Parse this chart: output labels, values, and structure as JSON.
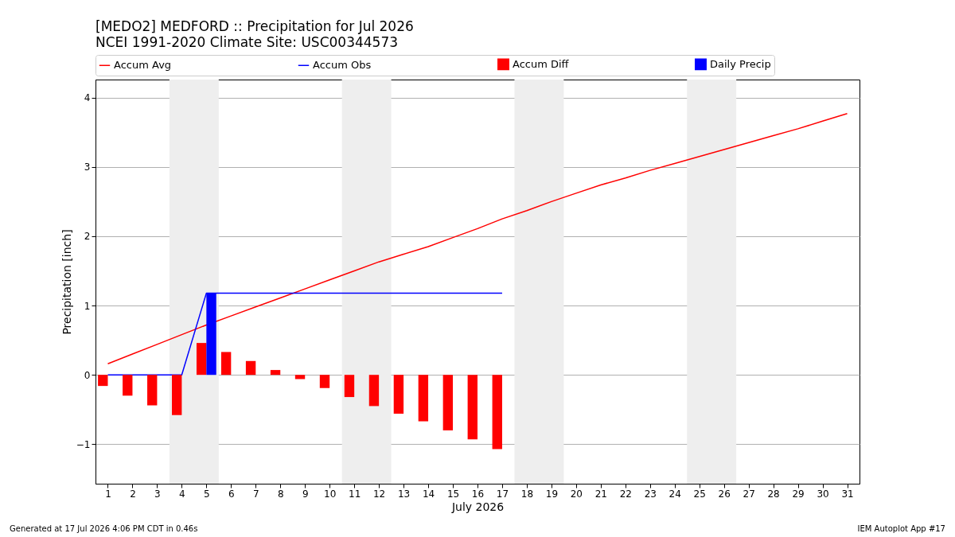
{
  "chart_data": {
    "type": "line",
    "title": "[MEDO2] MEDFORD :: Precipitation for Jul 2026",
    "subtitle": "NCEI 1991-2020 Climate Site: USC00344573",
    "xlabel": "July 2026",
    "ylabel": "Precipitation [inch]",
    "x": [
      1,
      2,
      3,
      4,
      5,
      6,
      7,
      8,
      9,
      10,
      11,
      12,
      13,
      14,
      15,
      16,
      17,
      18,
      19,
      20,
      21,
      22,
      23,
      24,
      25,
      26,
      27,
      28,
      29,
      30,
      31
    ],
    "series": [
      {
        "name": "Accum Avg",
        "color": "#ff0000",
        "values": [
          0.16,
          0.3,
          0.44,
          0.58,
          0.72,
          0.85,
          0.98,
          1.11,
          1.24,
          1.37,
          1.5,
          1.63,
          1.74,
          1.85,
          1.98,
          2.11,
          2.25,
          2.37,
          2.5,
          2.62,
          2.74,
          2.84,
          2.95,
          3.05,
          3.15,
          3.25,
          3.35,
          3.45,
          3.55,
          3.66,
          3.77
        ]
      },
      {
        "name": "Accum Obs",
        "color": "#0000ff",
        "values": [
          0,
          0,
          0,
          0,
          1.18,
          1.18,
          1.18,
          1.18,
          1.18,
          1.18,
          1.18,
          1.18,
          1.18,
          1.18,
          1.18,
          1.18,
          1.18,
          null,
          null,
          null,
          null,
          null,
          null,
          null,
          null,
          null,
          null,
          null,
          null,
          null,
          null
        ]
      },
      {
        "name": "Accum Diff",
        "type": "bar",
        "color": "#ff0000",
        "values": [
          -0.16,
          -0.3,
          -0.44,
          -0.58,
          0.46,
          0.33,
          0.2,
          0.07,
          -0.06,
          -0.19,
          -0.32,
          -0.45,
          -0.56,
          -0.67,
          -0.8,
          -0.93,
          -1.07,
          null,
          null,
          null,
          null,
          null,
          null,
          null,
          null,
          null,
          null,
          null,
          null,
          null,
          null
        ]
      },
      {
        "name": "Daily Precip",
        "type": "bar",
        "color": "#0000ff",
        "values": [
          null,
          null,
          null,
          null,
          1.18,
          null,
          null,
          null,
          null,
          null,
          null,
          null,
          null,
          null,
          null,
          null,
          null,
          null,
          null,
          null,
          null,
          null,
          null,
          null,
          null,
          null,
          null,
          null,
          null,
          null,
          null
        ]
      }
    ],
    "xlim": [
      0.5,
      31.5
    ],
    "xticks": [
      1,
      2,
      3,
      4,
      5,
      6,
      7,
      8,
      9,
      10,
      11,
      12,
      13,
      14,
      15,
      16,
      17,
      18,
      19,
      20,
      21,
      22,
      23,
      24,
      25,
      26,
      27,
      28,
      29,
      30,
      31
    ],
    "ylim": [
      -1.57,
      4.26
    ],
    "yticks": [
      -1,
      0,
      1,
      2,
      3,
      4
    ],
    "bands": [
      {
        "axis": "x",
        "from": 3.5,
        "to": 5.5,
        "color": "#eeeeee"
      },
      {
        "axis": "x",
        "from": 10.5,
        "to": 12.5,
        "color": "#eeeeee"
      },
      {
        "axis": "x",
        "from": 17.5,
        "to": 19.5,
        "color": "#eeeeee"
      },
      {
        "axis": "x",
        "from": 24.5,
        "to": 26.5,
        "color": "#eeeeee"
      }
    ],
    "grid": "y",
    "legend": "top",
    "annotations": [
      "Generated at 17 Jul 2026 4:06 PM CDT in 0.46s",
      "IEM Autoplot App #17"
    ]
  }
}
